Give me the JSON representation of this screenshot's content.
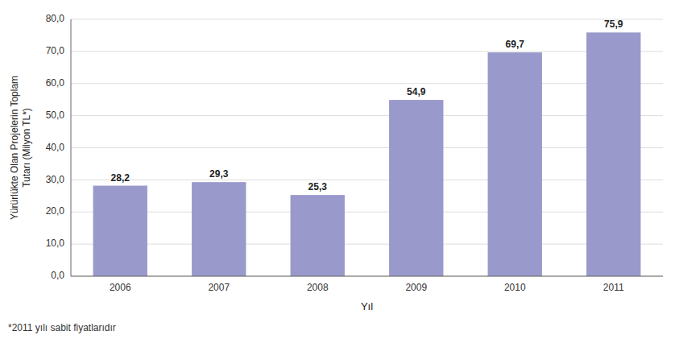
{
  "chart_data": {
    "type": "bar",
    "categories": [
      "2006",
      "2007",
      "2008",
      "2009",
      "2010",
      "2011"
    ],
    "values": [
      28.2,
      29.3,
      25.3,
      54.9,
      69.7,
      75.9
    ],
    "value_labels": [
      "28,2",
      "29,3",
      "25,3",
      "54,9",
      "69,7",
      "75,9"
    ],
    "data_labels": true,
    "color": "#9999cc",
    "ylabel": "Yürürlükte Olan Projelerin Toplam\nTutarı (Milyon TL*)",
    "xlabel": "Yıl",
    "annotations": [
      "*2011 yılı sabit fiyatlarıdır"
    ],
    "ylim": [
      0,
      80
    ],
    "yticks": [
      {
        "value": 0,
        "label": "0,0"
      },
      {
        "value": 10,
        "label": "10,0"
      },
      {
        "value": 20,
        "label": "20,0"
      },
      {
        "value": 30,
        "label": "30,0"
      },
      {
        "value": 40,
        "label": "40,0"
      },
      {
        "value": 50,
        "label": "50,0"
      },
      {
        "value": 60,
        "label": "60,0"
      },
      {
        "value": 70,
        "label": "70,0"
      },
      {
        "value": 80,
        "label": "80,0"
      }
    ],
    "grid": true
  }
}
